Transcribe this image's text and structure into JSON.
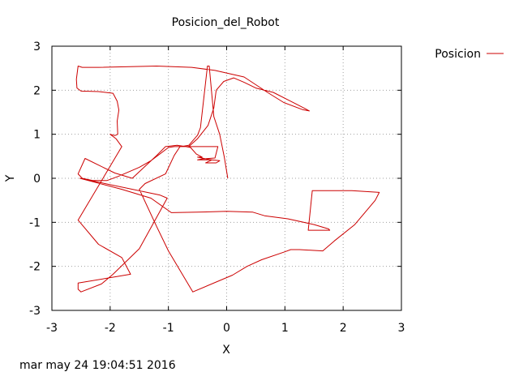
{
  "chart_data": {
    "type": "line",
    "title": "Posicion_del_Robot",
    "xlabel": "X",
    "ylabel": "Y",
    "xlim": [
      -3,
      3
    ],
    "ylim": [
      -3,
      3
    ],
    "xticks": [
      -3,
      -2,
      -1,
      0,
      1,
      2,
      3
    ],
    "yticks": [
      -3,
      -2,
      -1,
      0,
      1,
      2,
      3
    ],
    "grid": true,
    "legend_position": "outside-top-right",
    "series": [
      {
        "name": "Posicion",
        "color": "#cc0000",
        "points": [
          [
            0.02,
            0.0
          ],
          [
            -0.04,
            0.48
          ],
          [
            -0.12,
            1.0
          ],
          [
            -0.22,
            1.4
          ],
          [
            -0.3,
            2.55
          ],
          [
            -0.33,
            2.55
          ],
          [
            -0.45,
            1.15
          ],
          [
            -0.5,
            0.98
          ],
          [
            -0.65,
            0.75
          ],
          [
            -0.78,
            0.72
          ],
          [
            -0.9,
            0.72
          ],
          [
            -1.0,
            0.7
          ],
          [
            -1.3,
            0.4
          ],
          [
            -1.5,
            0.25
          ],
          [
            -1.85,
            0.05
          ],
          [
            -2.05,
            -0.05
          ],
          [
            -2.3,
            -0.05
          ],
          [
            -2.48,
            0.0
          ],
          [
            -2.55,
            0.1
          ],
          [
            -2.43,
            0.45
          ],
          [
            -2.2,
            0.3
          ],
          [
            -1.92,
            0.12
          ],
          [
            -1.62,
            0.0
          ],
          [
            -1.2,
            0.52
          ],
          [
            -1.05,
            0.72
          ],
          [
            -0.85,
            0.75
          ],
          [
            -0.7,
            0.72
          ],
          [
            -0.62,
            0.7
          ],
          [
            -0.52,
            0.55
          ],
          [
            -0.42,
            0.48
          ],
          [
            -0.5,
            0.48
          ],
          [
            -0.35,
            0.44
          ],
          [
            -0.26,
            0.42
          ],
          [
            -0.12,
            0.4
          ],
          [
            -0.18,
            0.35
          ],
          [
            -0.36,
            0.35
          ],
          [
            -0.25,
            0.42
          ],
          [
            -0.5,
            0.42
          ],
          [
            -0.42,
            0.44
          ],
          [
            -0.2,
            0.46
          ],
          [
            -0.15,
            0.72
          ],
          [
            -0.65,
            0.72
          ],
          [
            -0.5,
            0.9
          ],
          [
            -0.32,
            1.2
          ],
          [
            -0.22,
            1.6
          ],
          [
            -0.18,
            2.0
          ],
          [
            -0.05,
            2.2
          ],
          [
            0.12,
            2.28
          ],
          [
            0.3,
            2.18
          ],
          [
            0.5,
            2.05
          ],
          [
            0.8,
            1.95
          ],
          [
            1.1,
            1.75
          ],
          [
            1.35,
            1.58
          ],
          [
            1.42,
            1.53
          ],
          [
            1.3,
            1.56
          ],
          [
            0.98,
            1.72
          ],
          [
            0.7,
            1.95
          ],
          [
            0.3,
            2.3
          ],
          [
            -0.2,
            2.45
          ],
          [
            -0.6,
            2.52
          ],
          [
            -1.2,
            2.55
          ],
          [
            -2.2,
            2.52
          ],
          [
            -2.48,
            2.52
          ],
          [
            -2.55,
            2.55
          ],
          [
            -2.58,
            2.25
          ],
          [
            -2.57,
            2.05
          ],
          [
            -2.5,
            1.98
          ],
          [
            -2.2,
            1.97
          ],
          [
            -1.95,
            1.93
          ],
          [
            -1.88,
            1.75
          ],
          [
            -1.85,
            1.55
          ],
          [
            -1.88,
            1.3
          ],
          [
            -1.87,
            1.0
          ],
          [
            -1.92,
            0.97
          ],
          [
            -2.0,
            1.0
          ],
          [
            -1.9,
            0.9
          ],
          [
            -1.8,
            0.72
          ],
          [
            -2.1,
            0.05
          ],
          [
            -2.55,
            -0.95
          ],
          [
            -2.2,
            -1.5
          ],
          [
            -1.8,
            -1.8
          ],
          [
            -1.65,
            -2.18
          ],
          [
            -2.55,
            -2.38
          ],
          [
            -2.55,
            -2.52
          ],
          [
            -2.5,
            -2.58
          ],
          [
            -2.15,
            -2.4
          ],
          [
            -1.95,
            -2.18
          ],
          [
            -1.5,
            -1.6
          ],
          [
            -1.02,
            -0.45
          ],
          [
            -1.15,
            -0.38
          ],
          [
            -2.52,
            0.0
          ],
          [
            -1.8,
            -0.25
          ],
          [
            -1.3,
            -0.45
          ],
          [
            -0.95,
            -0.78
          ],
          [
            -0.5,
            -0.77
          ],
          [
            0.0,
            -0.75
          ],
          [
            0.45,
            -0.77
          ],
          [
            0.65,
            -0.85
          ],
          [
            1.05,
            -0.92
          ],
          [
            1.5,
            -1.05
          ],
          [
            1.75,
            -1.15
          ],
          [
            1.77,
            -1.18
          ],
          [
            1.4,
            -1.18
          ],
          [
            1.47,
            -0.28
          ],
          [
            2.15,
            -0.28
          ],
          [
            2.62,
            -0.32
          ],
          [
            2.55,
            -0.5
          ],
          [
            2.2,
            -1.05
          ],
          [
            1.85,
            -1.42
          ],
          [
            1.65,
            -1.65
          ],
          [
            1.25,
            -1.62
          ],
          [
            1.1,
            -1.62
          ],
          [
            1.0,
            -1.67
          ],
          [
            0.6,
            -1.85
          ],
          [
            0.35,
            -2.0
          ],
          [
            0.1,
            -2.2
          ],
          [
            -0.58,
            -2.58
          ],
          [
            -1.0,
            -1.65
          ],
          [
            -1.2,
            -1.1
          ],
          [
            -1.5,
            -0.25
          ],
          [
            -1.4,
            -0.12
          ],
          [
            -1.05,
            0.1
          ],
          [
            -0.9,
            0.52
          ],
          [
            -0.8,
            0.72
          ],
          [
            -0.5,
            0.72
          ]
        ]
      }
    ]
  },
  "footer": {
    "timestamp": "mar may 24 19:04:51 2016"
  }
}
